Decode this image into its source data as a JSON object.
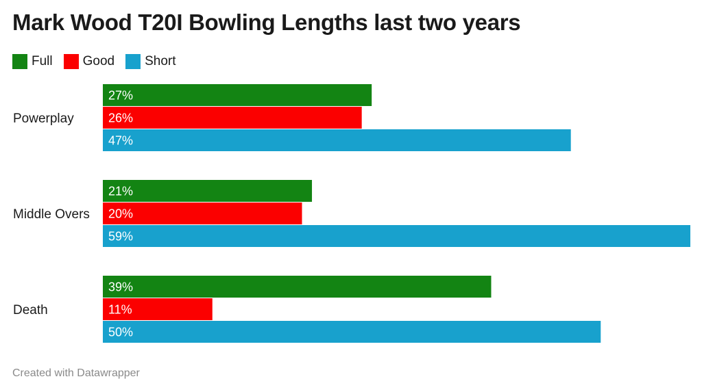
{
  "title": "Mark Wood T20I Bowling Lengths last two years",
  "footer": "Created with Datawrapper",
  "colors": {
    "Full": "#138413",
    "Good": "#fb0000",
    "Short": "#18a1cd"
  },
  "chart_data": {
    "type": "bar",
    "orientation": "horizontal",
    "title": "Mark Wood T20I Bowling Lengths last two years",
    "categories": [
      "Powerplay",
      "Middle Overs",
      "Death"
    ],
    "series": [
      {
        "name": "Full",
        "values": [
          27,
          21,
          39
        ],
        "color": "#138413"
      },
      {
        "name": "Good",
        "values": [
          26,
          20,
          11
        ],
        "color": "#fb0000"
      },
      {
        "name": "Short",
        "values": [
          47,
          59,
          50
        ],
        "color": "#18a1cd"
      }
    ],
    "unit": "%",
    "xlim": [
      0,
      59
    ],
    "legend": "top-left",
    "grid": false
  }
}
